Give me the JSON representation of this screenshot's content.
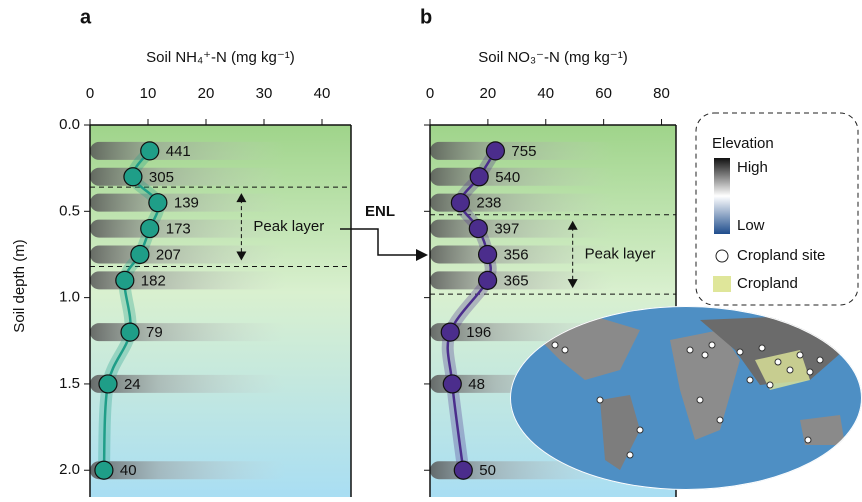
{
  "chart_data": [
    {
      "type": "line",
      "panel_label": "a",
      "title": "Soil NH₄⁺-N (mg kg⁻¹)",
      "ylabel": "Soil depth (m)",
      "color": "#1f9e88",
      "depth": [
        0.15,
        0.3,
        0.45,
        0.6,
        0.75,
        0.9,
        1.2,
        1.5,
        2.0
      ],
      "values": [
        10.3,
        7.4,
        11.7,
        10.3,
        8.6,
        6.0,
        6.9,
        3.1,
        2.4
      ],
      "sample_counts": [
        441,
        305,
        139,
        173,
        207,
        182,
        79,
        24,
        40
      ],
      "xlim": [
        0,
        45
      ],
      "xticks": [
        0,
        10,
        20,
        30,
        40
      ],
      "ylim": [
        0,
        2.155
      ],
      "yticks": [
        {
          "value": 0,
          "label": "0.0"
        },
        0.5,
        {
          "value": 1,
          "label": "1.0"
        },
        1.5,
        {
          "value": 2,
          "label": "2.0"
        }
      ],
      "show_ytick_labels": true,
      "peak_layer": {
        "label": "Peak layer",
        "range": [
          0.36,
          0.82
        ]
      }
    },
    {
      "type": "line",
      "panel_label": "b",
      "title": "Soil NO₃⁻-N (mg kg⁻¹)",
      "color": "#4b2d8c",
      "depth": [
        0.15,
        0.3,
        0.45,
        0.6,
        0.75,
        0.9,
        1.2,
        1.5,
        2.0
      ],
      "values": [
        22.6,
        17.0,
        10.5,
        16.7,
        19.9,
        19.9,
        7.0,
        7.7,
        11.5
      ],
      "sample_counts": [
        755,
        540,
        238,
        397,
        356,
        365,
        196,
        48,
        50
      ],
      "xlim": [
        0,
        85
      ],
      "xticks": [
        0,
        20,
        40,
        60,
        80
      ],
      "ylim": [
        0,
        2.155
      ],
      "yticks": [
        0,
        0.5,
        1,
        1.5,
        2
      ],
      "show_ytick_labels": false,
      "peak_layer": {
        "label": "Peak layer",
        "range": [
          0.52,
          0.98
        ]
      }
    }
  ],
  "annotation": "ENL",
  "legend": {
    "title": "Elevation",
    "high": "High",
    "low": "Low",
    "site": "Cropland site",
    "cropland": "Cropland"
  }
}
